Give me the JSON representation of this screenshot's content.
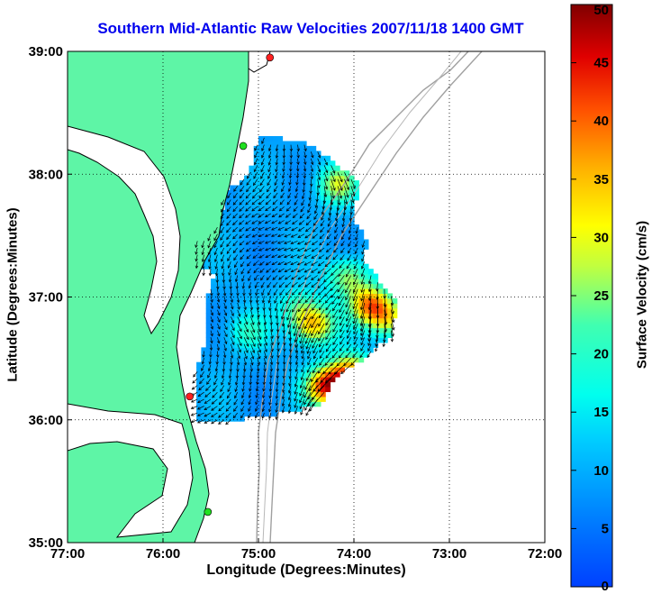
{
  "chart_data": {
    "type": "heatmap",
    "title": "Southern Mid-Atlantic Raw Velocities 2007/11/18 1400 GMT",
    "xlabel": "Longitude (Degrees:Minutes)",
    "ylabel": "Latitude (Degrees:Minutes)",
    "colorbar_label": "Surface Velocity (cm/s)",
    "xlim": [
      -77,
      -72
    ],
    "ylim": [
      35,
      39
    ],
    "x_ticks": [
      {
        "value": -77,
        "label": "77:00"
      },
      {
        "value": -76,
        "label": "76:00"
      },
      {
        "value": -75,
        "label": "75:00"
      },
      {
        "value": -74,
        "label": "74:00"
      },
      {
        "value": -73,
        "label": "73:00"
      },
      {
        "value": -72,
        "label": "72:00"
      }
    ],
    "y_ticks": [
      {
        "value": 35,
        "label": "35:00"
      },
      {
        "value": 36,
        "label": "36:00"
      },
      {
        "value": 37,
        "label": "37:00"
      },
      {
        "value": 38,
        "label": "38:00"
      },
      {
        "value": 39,
        "label": "39:00"
      }
    ],
    "colorbar_range": [
      0,
      50
    ],
    "colorbar_ticks": [
      0,
      5,
      10,
      15,
      20,
      25,
      30,
      35,
      40,
      45,
      50
    ],
    "grid": true,
    "grid_style": "dotted",
    "colors": {
      "land": "#5ef5a6",
      "coast": "#000000",
      "bathymetry": "#a0a0a0",
      "arrows": "#000000",
      "station_red": "#ff2020",
      "station_green": "#20e020"
    },
    "stations": [
      {
        "lon": -74.88,
        "lat": 38.95,
        "color": "red"
      },
      {
        "lon": -75.16,
        "lat": 38.23,
        "color": "green"
      },
      {
        "lon": -75.72,
        "lat": 36.19,
        "color": "red"
      },
      {
        "lon": -75.53,
        "lat": 35.25,
        "color": "green"
      }
    ],
    "hotspots": [
      {
        "lon": -74.2,
        "lat": 37.9,
        "speed": 28
      },
      {
        "lon": -74.1,
        "lat": 37.15,
        "speed": 27
      },
      {
        "lon": -73.85,
        "lat": 36.92,
        "speed": 38
      },
      {
        "lon": -73.65,
        "lat": 36.8,
        "speed": 30
      },
      {
        "lon": -74.45,
        "lat": 36.75,
        "speed": 35
      },
      {
        "lon": -74.6,
        "lat": 36.9,
        "speed": 22
      },
      {
        "lon": -74.05,
        "lat": 36.35,
        "speed": 40
      },
      {
        "lon": -74.3,
        "lat": 36.25,
        "speed": 45
      },
      {
        "lon": -75.15,
        "lat": 36.7,
        "speed": 20
      }
    ]
  }
}
